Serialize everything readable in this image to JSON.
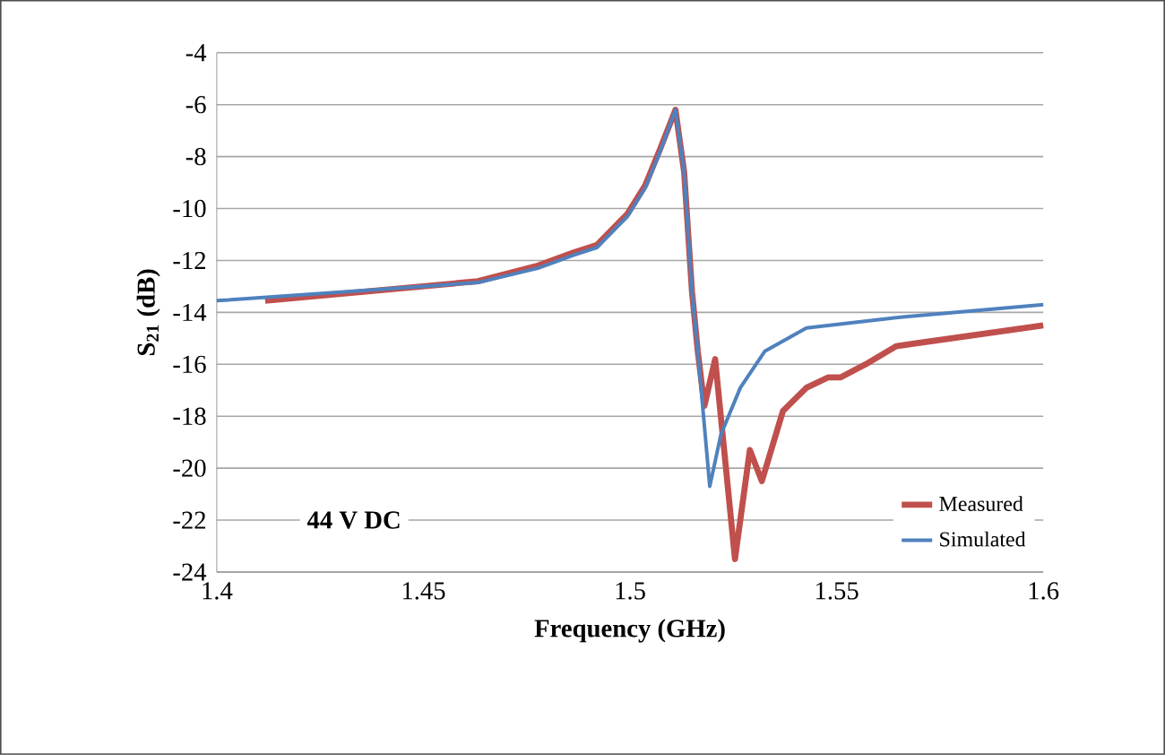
{
  "chart_data": {
    "type": "line",
    "xlabel": "Frequency (GHz)",
    "ylabel": "S$_{21}$ (dB)",
    "xlim": [
      1.4,
      1.6
    ],
    "ylim": [
      -24,
      -4
    ],
    "xticks": [
      1.4,
      1.45,
      1.5,
      1.55,
      1.6
    ],
    "yticks": [
      -24,
      -22,
      -20,
      -18,
      -16,
      -14,
      -12,
      -10,
      -8,
      -6,
      -4
    ],
    "grid": "y",
    "legend": "bottom right",
    "marker": "none",
    "line_style": "solid",
    "annotations": [
      "44 V DC"
    ],
    "series": [
      {
        "name": "Measured",
        "color": "#c0504d",
        "x": [
          1.4117,
          1.4632,
          1.4777,
          1.4863,
          1.492,
          1.4994,
          1.5037,
          1.5073,
          1.511,
          1.5131,
          1.515,
          1.5164,
          1.518,
          1.5206,
          1.5254,
          1.529,
          1.5319,
          1.537,
          1.5427,
          1.548,
          1.551,
          1.557,
          1.5644,
          1.6
        ],
        "values": [
          -13.55,
          -12.8,
          -12.2,
          -11.7,
          -11.4,
          -10.2,
          -9.1,
          -7.7,
          -6.2,
          -8.6,
          -13.2,
          -15.5,
          -17.6,
          -15.8,
          -23.5,
          -19.3,
          -20.5,
          -17.8,
          -16.9,
          -16.5,
          -16.5,
          -16.0,
          -15.3,
          -14.5
        ]
      },
      {
        "name": "Simulated",
        "color": "#4f81bd",
        "x": [
          1.4,
          1.4632,
          1.4777,
          1.4863,
          1.492,
          1.4994,
          1.5037,
          1.5073,
          1.511,
          1.5131,
          1.515,
          1.5164,
          1.5193,
          1.522,
          1.5267,
          1.5326,
          1.5427,
          1.5644,
          1.6
        ],
        "values": [
          -13.55,
          -12.85,
          -12.3,
          -11.8,
          -11.5,
          -10.3,
          -9.2,
          -7.8,
          -6.2,
          -8.6,
          -13.2,
          -15.5,
          -20.7,
          -18.7,
          -16.9,
          -15.5,
          -14.6,
          -14.2,
          -13.7
        ]
      }
    ]
  }
}
